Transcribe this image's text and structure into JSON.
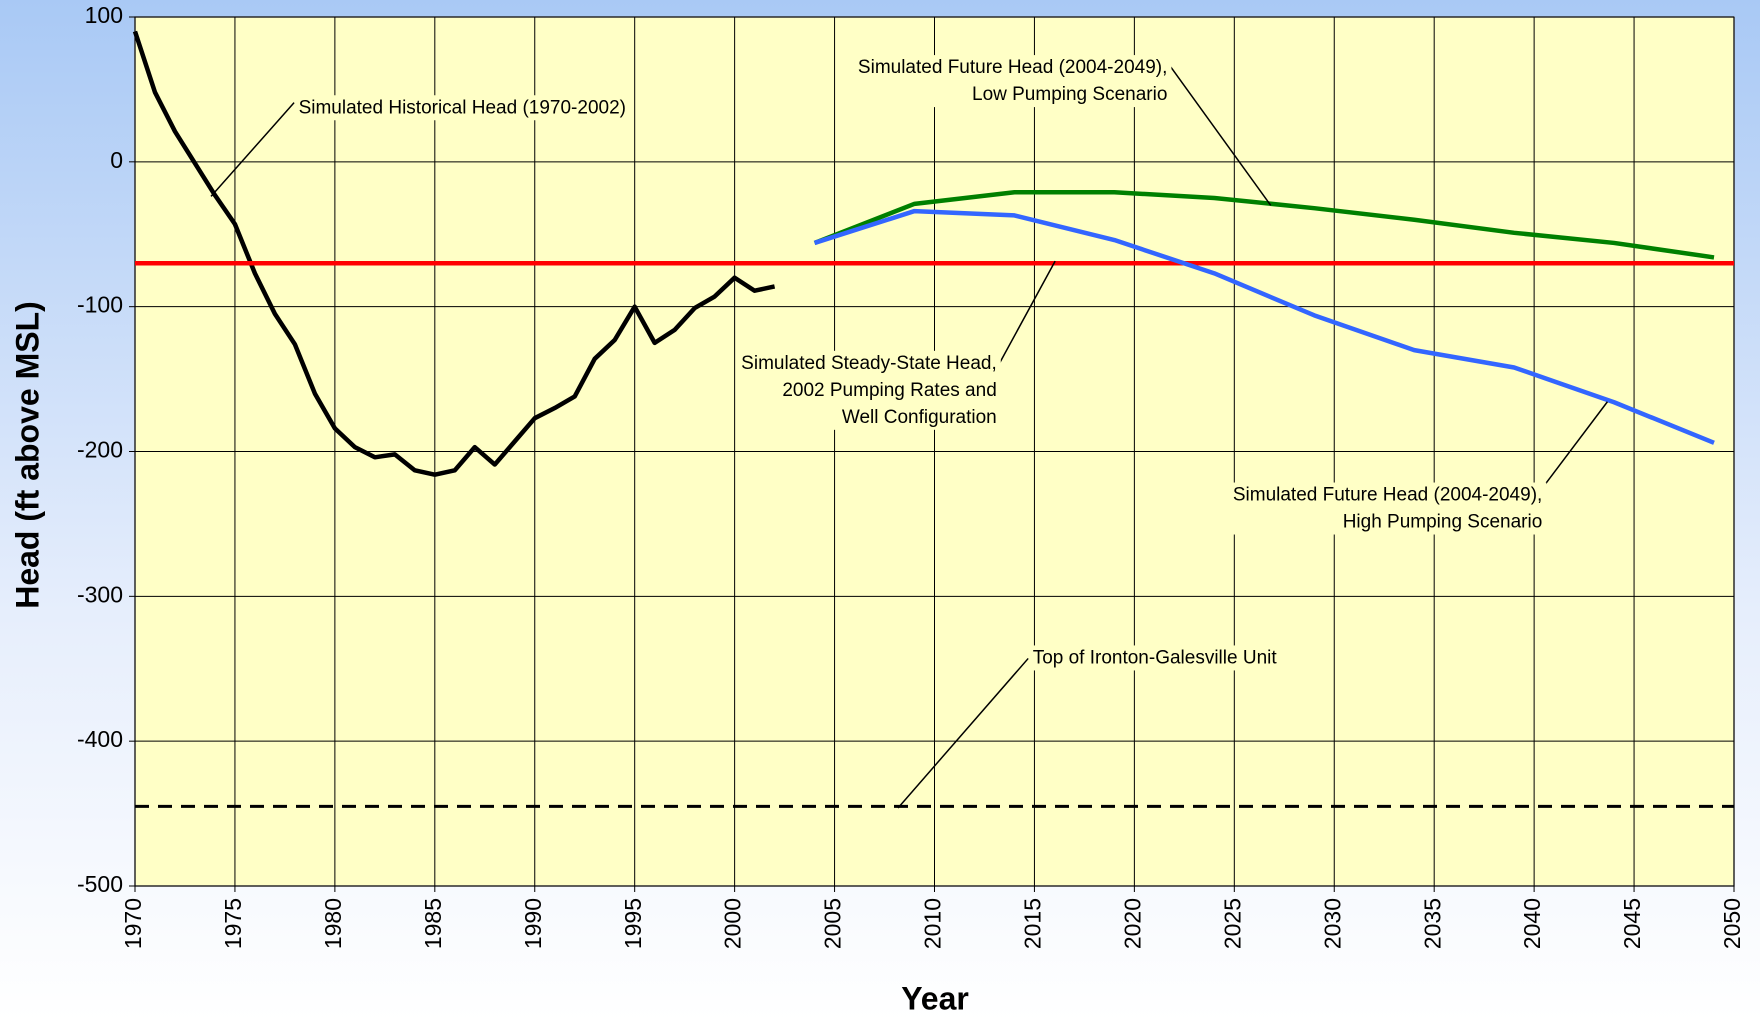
{
  "chart_data": {
    "type": "line",
    "xlabel": "Year",
    "ylabel": "Head (ft above MSL)",
    "xlim": [
      1970,
      2050
    ],
    "xticks": [
      1970,
      1975,
      1980,
      1985,
      1990,
      1995,
      2000,
      2005,
      2010,
      2015,
      2020,
      2025,
      2030,
      2035,
      2040,
      2045,
      2050
    ],
    "ylim": [
      -500,
      100
    ],
    "yticks": [
      -500,
      -400,
      -300,
      -200,
      -100,
      0,
      100
    ],
    "grid": true,
    "series": [
      {
        "color": "#000000",
        "style": "solid",
        "x": [
          1970,
          1971,
          1972,
          1973,
          1974,
          1975,
          1976,
          1977,
          1978,
          1979,
          1980,
          1981,
          1982,
          1983,
          1984,
          1985,
          1986,
          1987,
          1988,
          1989,
          1990,
          1991,
          1992,
          1993,
          1994,
          1995,
          1996,
          1997,
          1998,
          1999,
          2000,
          2001,
          2002
        ],
        "values": [
          90,
          48,
          21,
          -1,
          -23,
          -43,
          -77,
          -105,
          -126,
          -160,
          -184,
          -197,
          -204,
          -202,
          -213,
          -216,
          -213,
          -197,
          -209,
          -193,
          -177,
          -170,
          -162,
          -136,
          -123,
          -100,
          -125,
          -116,
          -101,
          -93,
          -80,
          -89,
          -86
        ]
      },
      {
        "color": "#ff0000",
        "style": "solid",
        "x": [
          1970,
          2050
        ],
        "values": [
          -70,
          -70
        ]
      },
      {
        "color": "#008000",
        "style": "solid",
        "x": [
          2004,
          2009,
          2014,
          2019,
          2024,
          2029,
          2034,
          2039,
          2044,
          2049
        ],
        "values": [
          -56,
          -29,
          -21,
          -21,
          -25,
          -32,
          -40,
          -49,
          -56,
          -66
        ]
      },
      {
        "color": "#3366ff",
        "style": "solid",
        "x": [
          2004,
          2009,
          2014,
          2019,
          2024,
          2029,
          2034,
          2039,
          2044,
          2049
        ],
        "values": [
          -56,
          -34,
          -37,
          -54,
          -77,
          -106,
          -130,
          -142,
          -166,
          -194
        ]
      },
      {
        "color": "#000000",
        "style": "dashed",
        "x": [
          1970,
          2050
        ],
        "values": [
          -445,
          -445
        ]
      }
    ],
    "annotations": [
      {
        "lines": [
          "Simulated Historical Head (1970-2002)"
        ]
      },
      {
        "lines": [
          "Simulated Future Head (2004-2049),",
          "Low Pumping Scenario"
        ]
      },
      {
        "lines": [
          "Simulated Steady-State Head,",
          "2002 Pumping Rates and",
          "Well Configuration"
        ]
      },
      {
        "lines": [
          "Simulated Future Head (2004-2049),",
          "High Pumping Scenario"
        ]
      },
      {
        "lines": [
          "Top of Ironton-Galesville Unit"
        ]
      }
    ]
  }
}
